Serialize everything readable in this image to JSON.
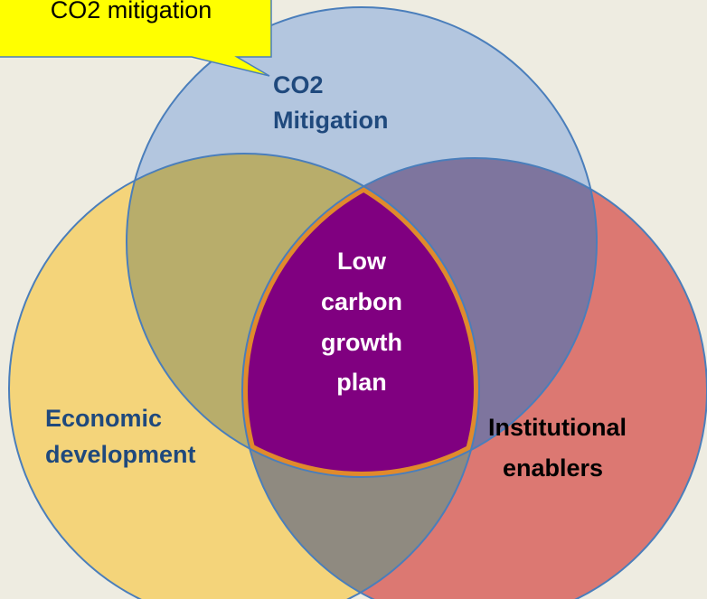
{
  "callout": {
    "text": "CO2 mitigation"
  },
  "circles": {
    "top": {
      "lines": [
        "CO2",
        "Mitigation"
      ]
    },
    "left": {
      "lines": [
        "Economic",
        "development"
      ]
    },
    "right": {
      "lines": [
        "Institutional",
        "enablers"
      ]
    },
    "center": {
      "lines": [
        "Low",
        "carbon",
        "growth",
        "plan"
      ]
    }
  }
}
